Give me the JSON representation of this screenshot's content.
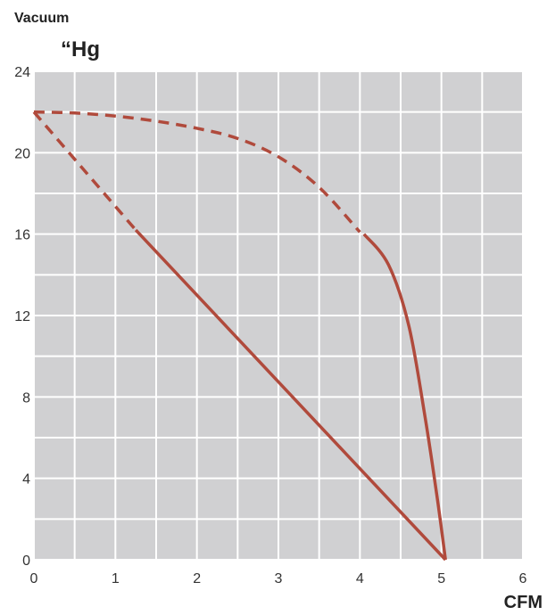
{
  "chart_data": {
    "type": "line",
    "ylabel": "Vacuum",
    "yunit": "“Hg",
    "xlabel": "CFM",
    "xlim": [
      0,
      6
    ],
    "ylim": [
      0,
      24
    ],
    "x_major_ticks": [
      0,
      1,
      2,
      3,
      4,
      5,
      6
    ],
    "y_major_ticks": [
      0,
      4,
      8,
      12,
      16,
      20,
      24
    ],
    "x_minor_step": 0.5,
    "y_minor_step": 2,
    "grid": true,
    "colors": {
      "background": "#d0d0d2",
      "grid": "#ffffff",
      "series": "#b04a3c"
    },
    "series": [
      {
        "style": "dashed",
        "points": [
          [
            0,
            22
          ],
          [
            0.5,
            21.95
          ],
          [
            1,
            21.8
          ],
          [
            1.5,
            21.55
          ],
          [
            2,
            21.2
          ],
          [
            2.5,
            20.7
          ],
          [
            3,
            19.8
          ],
          [
            3.5,
            18.3
          ],
          [
            4,
            16.1
          ]
        ]
      },
      {
        "style": "solid",
        "points": [
          [
            4.05,
            16
          ],
          [
            4.35,
            14.5
          ],
          [
            4.6,
            11.5
          ],
          [
            4.8,
            7
          ],
          [
            4.95,
            3
          ],
          [
            5.05,
            0
          ]
        ]
      },
      {
        "style": "dashed",
        "points": [
          [
            0,
            22
          ],
          [
            1.25,
            16.2
          ]
        ]
      },
      {
        "style": "solid",
        "points": [
          [
            1.25,
            16.2
          ],
          [
            5.05,
            0
          ]
        ]
      }
    ]
  }
}
